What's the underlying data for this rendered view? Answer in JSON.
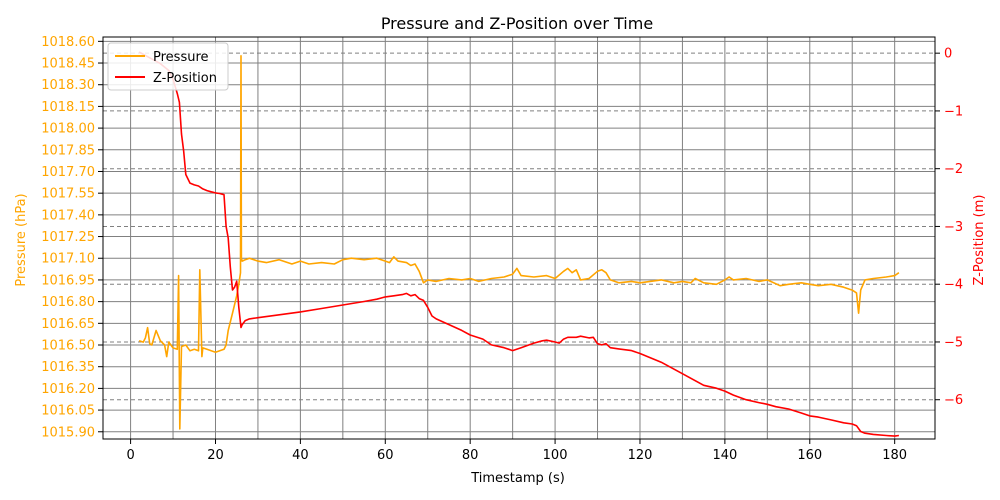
{
  "chart_data": {
    "type": "line",
    "title": "Pressure and Z-Position over Time",
    "xlabel": "Timestamp (s)",
    "ylabel_left": "Pressure (hPa)",
    "ylabel_right": "Z-Position (m)",
    "xlim": [
      -6.5,
      189.5
    ],
    "ylim_left": [
      1015.85,
      1018.63
    ],
    "ylim_right": [
      -6.68,
      0.28
    ],
    "x_ticks": [
      0,
      20,
      40,
      60,
      80,
      100,
      120,
      140,
      160,
      180
    ],
    "x_tick_labels": [
      "0",
      "20",
      "40",
      "60",
      "80",
      "100",
      "120",
      "140",
      "160",
      "180"
    ],
    "y_left_ticks": [
      1015.9,
      1016.05,
      1016.2,
      1016.35,
      1016.5,
      1016.65,
      1016.8,
      1016.95,
      1017.1,
      1017.25,
      1017.4,
      1017.55,
      1017.7,
      1017.85,
      1018.0,
      1018.15,
      1018.3,
      1018.45,
      1018.6
    ],
    "y_left_tick_labels": [
      "1015.90",
      "1016.05",
      "1016.20",
      "1016.35",
      "1016.50",
      "1016.65",
      "1016.80",
      "1016.95",
      "1017.10",
      "1017.25",
      "1017.40",
      "1017.55",
      "1017.70",
      "1017.85",
      "1018.00",
      "1018.15",
      "1018.30",
      "1018.45",
      "1018.60"
    ],
    "y_right_ticks": [
      0,
      -1,
      -2,
      -3,
      -4,
      -5,
      -6
    ],
    "y_right_tick_labels": [
      "0",
      "−1",
      "−2",
      "−3",
      "−4",
      "−5",
      "−6"
    ],
    "grid": true,
    "legend_position": "top-left",
    "colors": {
      "pressure": "#FFA500",
      "zposition": "#FF0000",
      "grid": "#808080",
      "axis": "#000000"
    },
    "series": [
      {
        "name": "Pressure",
        "axis": "left",
        "x": [
          2,
          3,
          3.5,
          4,
          4.5,
          5,
          6,
          7,
          8,
          8.5,
          9,
          10,
          11,
          11.3,
          11.6,
          12,
          13,
          14,
          15,
          16,
          16.3,
          16.8,
          17,
          18,
          19,
          20,
          21,
          22,
          22.5,
          23,
          24,
          25,
          25.5,
          25.9,
          26,
          26.1,
          26.3,
          27,
          28,
          30,
          32,
          35,
          38,
          40,
          42,
          45,
          48,
          50,
          52,
          55,
          58,
          60,
          61,
          62,
          63,
          65,
          66,
          67,
          68,
          69,
          70,
          72,
          75,
          78,
          80,
          82,
          85,
          88,
          90,
          91,
          92,
          95,
          98,
          100,
          102,
          103,
          104,
          105,
          106,
          108,
          110,
          111,
          112,
          113,
          115,
          118,
          120,
          125,
          128,
          130,
          132,
          133,
          135,
          138,
          140,
          141,
          142,
          145,
          148,
          150,
          153,
          155,
          158,
          160,
          162,
          165,
          168,
          170,
          171,
          171.5,
          172,
          173,
          175,
          178,
          180,
          181
        ],
        "y": [
          1016.53,
          1016.52,
          1016.55,
          1016.62,
          1016.51,
          1016.5,
          1016.6,
          1016.53,
          1016.5,
          1016.42,
          1016.52,
          1016.48,
          1016.47,
          1016.98,
          1015.92,
          1016.49,
          1016.5,
          1016.46,
          1016.47,
          1016.46,
          1017.02,
          1016.42,
          1016.48,
          1016.47,
          1016.46,
          1016.45,
          1016.46,
          1016.47,
          1016.5,
          1016.6,
          1016.72,
          1016.84,
          1016.92,
          1017.0,
          1018.5,
          1017.1,
          1017.08,
          1017.09,
          1017.1,
          1017.08,
          1017.07,
          1017.09,
          1017.06,
          1017.08,
          1017.06,
          1017.07,
          1017.06,
          1017.09,
          1017.1,
          1017.09,
          1017.1,
          1017.08,
          1017.07,
          1017.11,
          1017.08,
          1017.07,
          1017.05,
          1017.06,
          1017.01,
          1016.93,
          1016.95,
          1016.94,
          1016.96,
          1016.95,
          1016.96,
          1016.94,
          1016.96,
          1016.97,
          1016.99,
          1017.03,
          1016.98,
          1016.97,
          1016.98,
          1016.96,
          1017.01,
          1017.03,
          1017.0,
          1017.02,
          1016.95,
          1016.96,
          1017.01,
          1017.02,
          1017.0,
          1016.95,
          1016.93,
          1016.94,
          1016.93,
          1016.95,
          1016.93,
          1016.94,
          1016.93,
          1016.96,
          1016.93,
          1016.92,
          1016.95,
          1016.97,
          1016.95,
          1016.96,
          1016.94,
          1016.95,
          1016.91,
          1016.92,
          1016.93,
          1016.92,
          1016.91,
          1016.92,
          1016.9,
          1016.88,
          1016.86,
          1016.72,
          1016.88,
          1016.95,
          1016.96,
          1016.97,
          1016.98,
          1017.0
        ]
      },
      {
        "name": "Z-Position",
        "axis": "right",
        "x": [
          2,
          5,
          7,
          9,
          10,
          11,
          11.5,
          12,
          12.5,
          13,
          14,
          15,
          16,
          17,
          18,
          19,
          20,
          21,
          22,
          22.5,
          23,
          23.5,
          24,
          24.5,
          25,
          25.5,
          26,
          26.3,
          27,
          28,
          30,
          35,
          40,
          45,
          50,
          55,
          58,
          60,
          62,
          64,
          65,
          66,
          67,
          68,
          69,
          70,
          71,
          72,
          75,
          78,
          80,
          83,
          85,
          88,
          90,
          92,
          95,
          97,
          98,
          100,
          101,
          102,
          103,
          105,
          106,
          108,
          109,
          110,
          111,
          112,
          113,
          115,
          118,
          120,
          125,
          130,
          135,
          138,
          140,
          142,
          145,
          148,
          150,
          152,
          155,
          158,
          160,
          162,
          165,
          168,
          170,
          171,
          172,
          173,
          175,
          178,
          180,
          181
        ],
        "y": [
          0.02,
          -0.1,
          -0.18,
          -0.3,
          -0.45,
          -0.7,
          -0.85,
          -1.4,
          -1.7,
          -2.1,
          -2.25,
          -2.28,
          -2.3,
          -2.35,
          -2.38,
          -2.4,
          -2.42,
          -2.43,
          -2.45,
          -3.0,
          -3.2,
          -3.7,
          -4.1,
          -4.05,
          -3.95,
          -4.4,
          -4.75,
          -4.7,
          -4.63,
          -4.6,
          -4.58,
          -4.53,
          -4.48,
          -4.42,
          -4.36,
          -4.3,
          -4.26,
          -4.22,
          -4.2,
          -4.18,
          -4.16,
          -4.2,
          -4.18,
          -4.25,
          -4.28,
          -4.4,
          -4.55,
          -4.6,
          -4.7,
          -4.8,
          -4.88,
          -4.95,
          -5.05,
          -5.1,
          -5.15,
          -5.1,
          -5.02,
          -4.98,
          -4.97,
          -5.0,
          -5.02,
          -4.95,
          -4.92,
          -4.92,
          -4.9,
          -4.93,
          -4.92,
          -5.03,
          -5.05,
          -5.03,
          -5.1,
          -5.12,
          -5.15,
          -5.2,
          -5.35,
          -5.55,
          -5.75,
          -5.8,
          -5.85,
          -5.92,
          -6.0,
          -6.05,
          -6.08,
          -6.12,
          -6.16,
          -6.23,
          -6.28,
          -6.3,
          -6.35,
          -6.4,
          -6.42,
          -6.45,
          -6.55,
          -6.58,
          -6.6,
          -6.62,
          -6.63,
          -6.62
        ]
      }
    ]
  }
}
